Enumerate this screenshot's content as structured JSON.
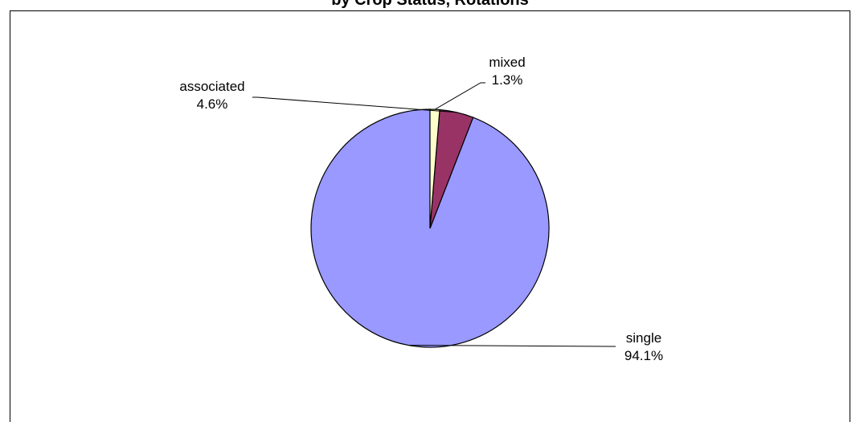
{
  "chart_data": {
    "type": "pie",
    "title": "by Crop Status, Rotations",
    "slices": [
      {
        "label": "single",
        "value": 94.1,
        "value_label": "94.1%",
        "color": "#9999FF"
      },
      {
        "label": "associated",
        "value": 4.6,
        "value_label": "4.6%",
        "color": "#993366"
      },
      {
        "label": "mixed",
        "value": 1.3,
        "value_label": "1.3%",
        "color": "#FFFFCC"
      }
    ],
    "start_angle_deg": 0,
    "direction": "counterclockwise",
    "legend": "none",
    "data_labels": "outside-with-leader-lines"
  }
}
